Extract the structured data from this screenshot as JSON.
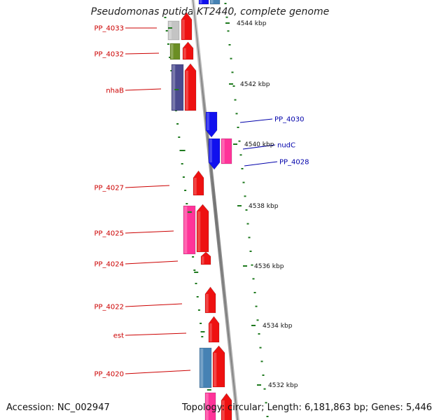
{
  "title": "Pseudomonas putida KT2440, complete genome",
  "footer": {
    "accession": "Accession: NC_002947",
    "topology": "Topology: circular; Length: 6,181,863 bp; Genes: 5,446"
  },
  "colors": {
    "backbone": "#8a8a8a",
    "tick": "#1f7a1f",
    "label_left": "#cc0000",
    "label_right": "#0000aa",
    "red": "#ee1111",
    "blue": "#1111ee",
    "pink": "#ff3399",
    "grey": "#c4c4c4",
    "olive": "#6b8e23",
    "purple": "#4b4b8f",
    "steel": "#4682b4"
  },
  "tick_labels": [
    "4544 kbp",
    "4542 kbp",
    "4540 kbp",
    "4538 kbp",
    "4536 kbp",
    "4534 kbp",
    "4532 kbp"
  ],
  "gene_labels": {
    "left": [
      "PP_4033",
      "PP_4032",
      "nhaB",
      "PP_4027",
      "PP_4025",
      "PP_4024",
      "PP_4022",
      "est",
      "PP_4020"
    ],
    "right": [
      "PP_4030",
      "nudC",
      "PP_4028"
    ]
  }
}
